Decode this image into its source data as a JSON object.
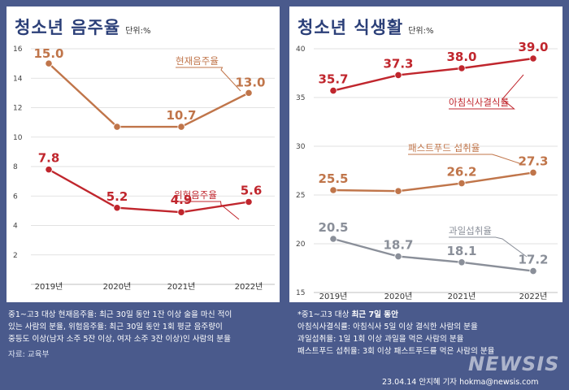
{
  "left": {
    "title": "청소년 음주율",
    "unit": "단위:%",
    "notes": [
      "중1~고3 대상 현재음주율: 최근 30일 동안 1잔 이상 술을 마신 적이",
      "있는 사람의 분율, 위험음주율: 최근 30일 동안 1회 평균 음주량이",
      "중등도 이상(남자 소주 5잔 이상, 여자 소주 3잔 이상)인 사람의 분율"
    ],
    "source": "자료: 교육부"
  },
  "right": {
    "title": "청소년 식생활",
    "unit": "단위:%",
    "note_title_prefix": "*중1~고3 대상 ",
    "note_title_bold": "최근 7일 동안",
    "notes": [
      "아침식사결식률: 아침식사 5일 이상 결식한 사람의 분율",
      "과일섭취율: 1일 1회 이상 과일을 먹은 사람의 분율",
      "패스트푸드 섭취율: 3회 이상 패스트푸드를 먹은 사람의 분율"
    ]
  },
  "credit": "23.04.14 안지혜 기자 hokma@newsis.com",
  "logo": "NEWSIS",
  "colors": {
    "background": "#4a5a8c",
    "current": "#c0754a",
    "risk": "#c0262d",
    "breakfast": "#c0262d",
    "fastfood": "#c0754a",
    "fruit": "#8a8f99",
    "title": "#2b3f78"
  },
  "chart_data": [
    {
      "type": "line",
      "title": "청소년 음주율",
      "unit": "단위:%",
      "categories": [
        "2019년",
        "2020년",
        "2021년",
        "2022년"
      ],
      "ylim": [
        0,
        16
      ],
      "yticks": [
        2,
        4,
        6,
        8,
        10,
        12,
        14,
        16
      ],
      "grid": true,
      "series": [
        {
          "name": "현재음주율",
          "values": [
            15.0,
            10.7,
            10.7,
            13.0
          ],
          "labels": [
            "15.0",
            "",
            "10.7",
            "13.0"
          ],
          "color": "#c0754a"
        },
        {
          "name": "위험음주율",
          "values": [
            7.8,
            5.2,
            4.9,
            5.6
          ],
          "labels": [
            "7.8",
            "5.2",
            "4.9",
            "5.6"
          ],
          "color": "#c0262d"
        }
      ]
    },
    {
      "type": "line",
      "title": "청소년 식생활",
      "unit": "단위:%",
      "categories": [
        "2019년",
        "2020년",
        "2021년",
        "2022년"
      ],
      "ylim": [
        15,
        40
      ],
      "yticks": [
        15,
        20,
        25,
        30,
        35,
        40
      ],
      "grid": true,
      "series": [
        {
          "name": "아침식사결식률",
          "values": [
            35.7,
            37.3,
            38.0,
            39.0
          ],
          "labels": [
            "35.7",
            "37.3",
            "38.0",
            "39.0"
          ],
          "color": "#c0262d"
        },
        {
          "name": "패스트푸드 섭취율",
          "values": [
            25.5,
            25.4,
            26.2,
            27.3
          ],
          "labels": [
            "25.5",
            "",
            "26.2",
            "27.3"
          ],
          "color": "#c0754a"
        },
        {
          "name": "과일섭취율",
          "values": [
            20.5,
            18.7,
            18.1,
            17.2
          ],
          "labels": [
            "20.5",
            "18.7",
            "18.1",
            "17.2"
          ],
          "color": "#8a8f99"
        }
      ]
    }
  ]
}
